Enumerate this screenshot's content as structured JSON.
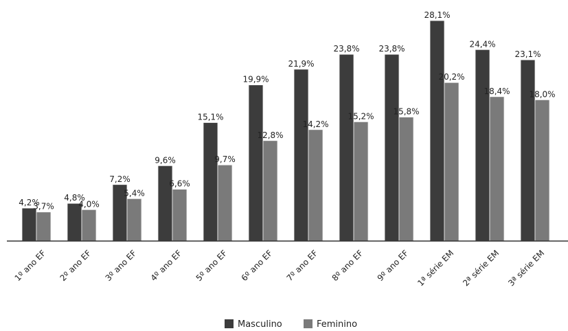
{
  "chart_data": {
    "type": "bar",
    "title": "",
    "xlabel": "",
    "ylabel": "",
    "categories": [
      "1º ano EF",
      "2º ano EF",
      "3º ano EF",
      "4º ano EF",
      "5º ano EF",
      "6º ano EF",
      "7º ano EF",
      "8º ano EF",
      "9º ano EF",
      "1ª série EM",
      "2ª série EM",
      "3ª série EM"
    ],
    "series": [
      {
        "name": "Masculino",
        "color": "#3c3c3c",
        "values": [
          4.2,
          4.8,
          7.2,
          9.6,
          15.1,
          19.9,
          21.9,
          23.8,
          23.8,
          28.1,
          24.4,
          23.1
        ],
        "labels": [
          "4,2%",
          "4,8%",
          "7,2%",
          "9,6%",
          "15,1%",
          "19,9%",
          "21,9%",
          "23,8%",
          "23,8%",
          "28,1%",
          "24,4%",
          "23,1%"
        ]
      },
      {
        "name": "Feminino",
        "color": "#7a7a7a",
        "values": [
          3.7,
          4.0,
          5.4,
          6.6,
          9.7,
          12.8,
          14.2,
          15.2,
          15.8,
          20.2,
          18.4,
          18.0
        ],
        "labels": [
          "3,7%",
          "4,0%",
          "5,4%",
          "6,6%",
          "9,7%",
          "12,8%",
          "14,2%",
          "15,2%",
          "15,8%",
          "20,2%",
          "18,4%",
          "18,0%"
        ]
      }
    ],
    "ylim": [
      0,
      28.1
    ],
    "grid": false,
    "legend": "bottom-center"
  }
}
